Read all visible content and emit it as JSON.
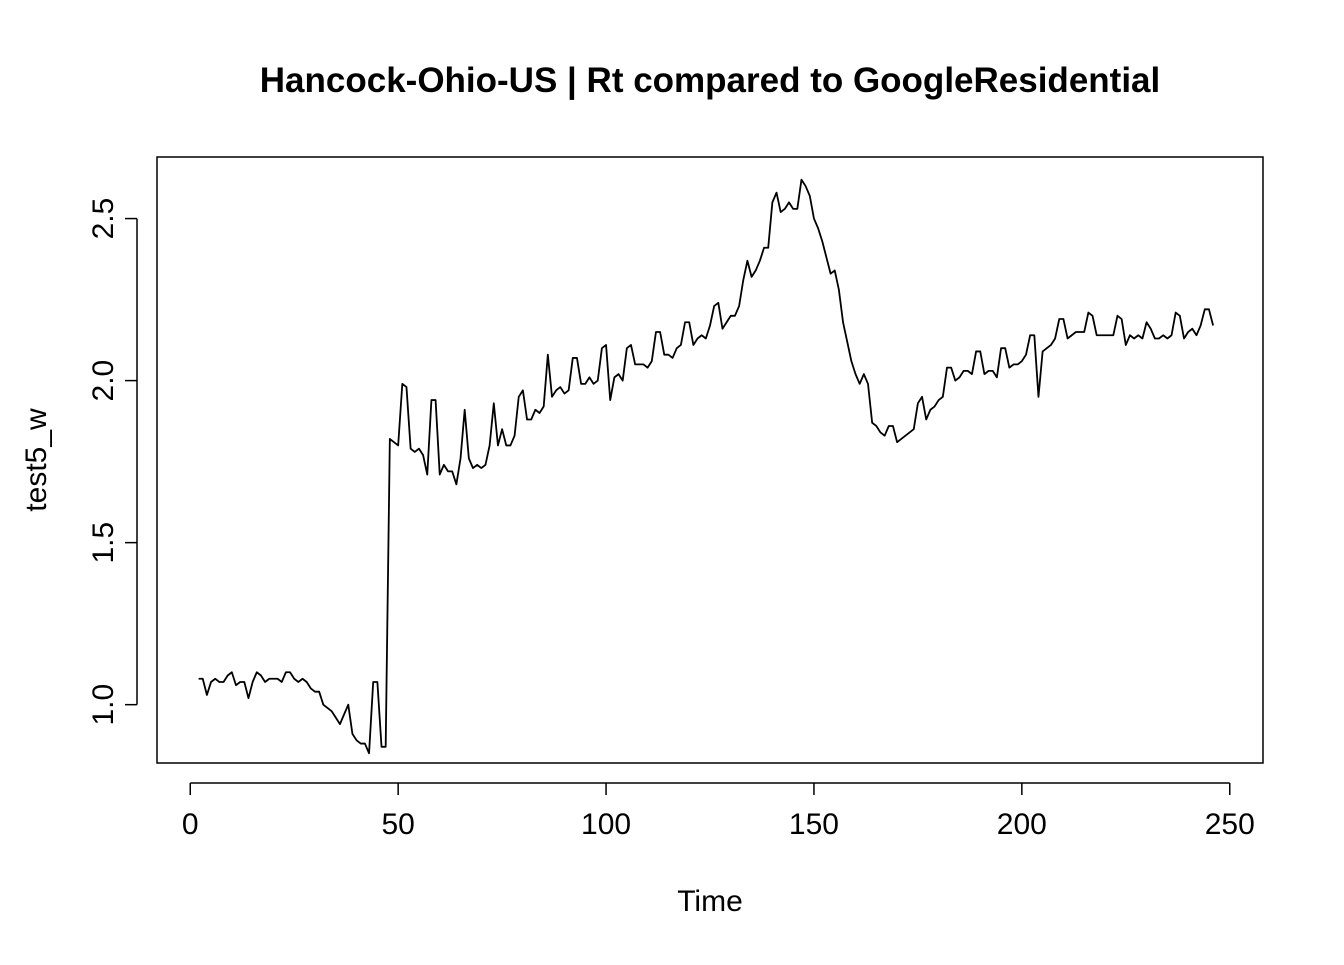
{
  "chart_data": {
    "type": "line",
    "title": "Hancock-Ohio-US | Rt compared to GoogleResidential",
    "xlabel": "Time",
    "ylabel": "test5_w",
    "xlim": [
      -8,
      258
    ],
    "ylim": [
      0.82,
      2.69
    ],
    "x_ticks": [
      0,
      50,
      100,
      150,
      200,
      250
    ],
    "y_ticks": [
      1.0,
      1.5,
      2.0,
      2.5
    ],
    "x_tick_labels": [
      "0",
      "50",
      "100",
      "150",
      "200",
      "250"
    ],
    "y_tick_labels": [
      "1.0",
      "1.5",
      "2.0",
      "2.5"
    ],
    "grid": false,
    "legend": "none",
    "line_color": "#000000",
    "series": [
      {
        "x_start": 2,
        "x_step": 1,
        "values": [
          1.08,
          1.08,
          1.03,
          1.07,
          1.08,
          1.07,
          1.07,
          1.09,
          1.1,
          1.06,
          1.07,
          1.07,
          1.02,
          1.07,
          1.1,
          1.09,
          1.07,
          1.08,
          1.08,
          1.08,
          1.07,
          1.1,
          1.1,
          1.08,
          1.07,
          1.08,
          1.07,
          1.05,
          1.04,
          1.04,
          1.0,
          0.99,
          0.98,
          0.96,
          0.94,
          0.97,
          1.0,
          0.91,
          0.89,
          0.88,
          0.88,
          0.85,
          1.07,
          1.07,
          0.87,
          0.87,
          1.82,
          1.81,
          1.8,
          1.99,
          1.98,
          1.79,
          1.78,
          1.79,
          1.77,
          1.71,
          1.94,
          1.94,
          1.71,
          1.74,
          1.72,
          1.72,
          1.68,
          1.76,
          1.91,
          1.76,
          1.73,
          1.74,
          1.73,
          1.74,
          1.8,
          1.93,
          1.8,
          1.85,
          1.8,
          1.8,
          1.83,
          1.95,
          1.97,
          1.88,
          1.88,
          1.91,
          1.9,
          1.92,
          2.08,
          1.95,
          1.97,
          1.98,
          1.96,
          1.97,
          2.07,
          2.07,
          1.99,
          1.99,
          2.01,
          1.99,
          2.0,
          2.1,
          2.11,
          1.94,
          2.01,
          2.02,
          2.0,
          2.1,
          2.11,
          2.05,
          2.05,
          2.05,
          2.04,
          2.06,
          2.15,
          2.15,
          2.08,
          2.08,
          2.07,
          2.1,
          2.11,
          2.18,
          2.18,
          2.11,
          2.13,
          2.14,
          2.13,
          2.17,
          2.23,
          2.24,
          2.16,
          2.18,
          2.2,
          2.2,
          2.23,
          2.31,
          2.37,
          2.32,
          2.34,
          2.37,
          2.41,
          2.41,
          2.55,
          2.58,
          2.52,
          2.53,
          2.55,
          2.53,
          2.53,
          2.62,
          2.6,
          2.57,
          2.5,
          2.47,
          2.43,
          2.38,
          2.33,
          2.34,
          2.28,
          2.18,
          2.12,
          2.06,
          2.02,
          1.99,
          2.02,
          1.99,
          1.87,
          1.86,
          1.84,
          1.83,
          1.86,
          1.86,
          1.81,
          1.82,
          1.83,
          1.84,
          1.85,
          1.93,
          1.95,
          1.88,
          1.91,
          1.92,
          1.94,
          1.95,
          2.04,
          2.04,
          2.0,
          2.01,
          2.03,
          2.03,
          2.02,
          2.09,
          2.09,
          2.02,
          2.03,
          2.03,
          2.01,
          2.1,
          2.1,
          2.04,
          2.05,
          2.05,
          2.06,
          2.08,
          2.14,
          2.14,
          1.95,
          2.09,
          2.1,
          2.11,
          2.13,
          2.19,
          2.19,
          2.13,
          2.14,
          2.15,
          2.15,
          2.15,
          2.21,
          2.2,
          2.14,
          2.14,
          2.14,
          2.14,
          2.14,
          2.2,
          2.19,
          2.11,
          2.14,
          2.13,
          2.14,
          2.13,
          2.18,
          2.16,
          2.13,
          2.13,
          2.14,
          2.13,
          2.14,
          2.21,
          2.2,
          2.13,
          2.15,
          2.16,
          2.14,
          2.17,
          2.22,
          2.22,
          2.17
        ]
      }
    ]
  }
}
